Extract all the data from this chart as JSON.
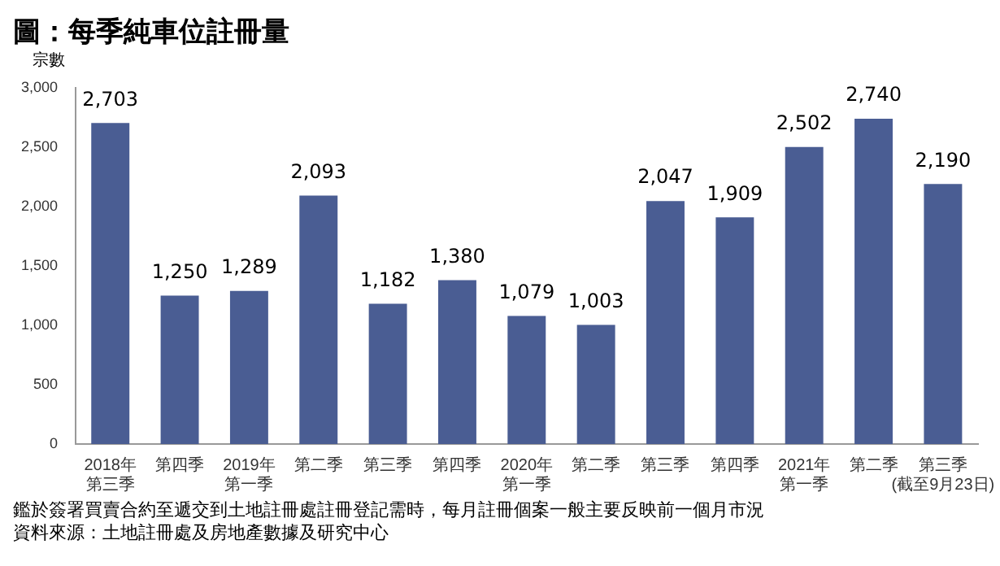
{
  "chart_data": {
    "type": "bar",
    "title": "圖：每季純車位註冊量",
    "ylabel": "宗數",
    "categories": [
      "2018年第三季",
      "第四季",
      "2019年第一季",
      "第二季",
      "第三季",
      "第四季",
      "2020年第一季",
      "第二季",
      "第三季",
      "第四季",
      "2021年第一季",
      "第二季",
      "第三季\n(截至9月23日)"
    ],
    "values": [
      2703,
      1250,
      1289,
      2093,
      1182,
      1380,
      1079,
      1003,
      2047,
      1909,
      2502,
      2740,
      2190
    ],
    "value_labels": [
      "2,703",
      "1,250",
      "1,289",
      "2,093",
      "1,182",
      "1,380",
      "1,079",
      "1,003",
      "2,047",
      "1,909",
      "2,502",
      "2,740",
      "2,190"
    ],
    "color": "#4a5d93",
    "ylim": [
      0,
      3000
    ],
    "yticks": [
      {
        "value": 0,
        "label": "0"
      },
      {
        "value": 500,
        "label": "500"
      },
      {
        "value": 1000,
        "label": "1,000"
      },
      {
        "value": 1500,
        "label": "1,500"
      },
      {
        "value": 2000,
        "label": "2,000"
      },
      {
        "value": 2500,
        "label": "2,500"
      },
      {
        "value": 3000,
        "label": "3,000"
      }
    ],
    "grid": false,
    "annotations": [
      "鑑於簽署買賣合約至遞交到土地註冊處註冊登記需時，每月註冊個案一般主要反映前一個月市況",
      "資料來源：土地註冊處及房地產數據及研究中心"
    ]
  }
}
